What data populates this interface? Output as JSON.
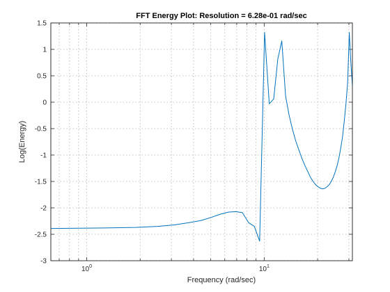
{
  "chart_data": {
    "type": "line",
    "title": "FFT Energy Plot: Resolution =   6.28e-01 rad/sec",
    "xlabel": "Frequency (rad/sec)",
    "ylabel": "Log(Energy)",
    "xscale": "log",
    "xlim": [
      0.628,
      31.4
    ],
    "ylim": [
      -3,
      1.5
    ],
    "x_ticks": [
      {
        "value": 1,
        "base": "10",
        "exp": "0"
      },
      {
        "value": 10,
        "base": "10",
        "exp": "1"
      }
    ],
    "y_ticks": [
      {
        "value": 1.5,
        "label": "1.5"
      },
      {
        "value": 1,
        "label": "1"
      },
      {
        "value": 0.5,
        "label": "0.5"
      },
      {
        "value": 0,
        "label": "0"
      },
      {
        "value": -0.5,
        "label": "-0.5"
      },
      {
        "value": -1,
        "label": "-1"
      },
      {
        "value": -1.5,
        "label": "-1.5"
      },
      {
        "value": -2,
        "label": "-2"
      },
      {
        "value": -2.5,
        "label": "-2.5"
      },
      {
        "value": -3,
        "label": "-3"
      }
    ],
    "grid": true,
    "series": [
      {
        "color": "#0072bd",
        "x": [
          0.628,
          1.257,
          1.885,
          2.513,
          3.142,
          3.77,
          4.398,
          5.027,
          5.655,
          6.283,
          6.912,
          7.54,
          8.168,
          8.796,
          9.425,
          10.053,
          10.681,
          11.31,
          11.938,
          12.566,
          13.195,
          13.823,
          14.451,
          15.08,
          15.708,
          16.336,
          16.965,
          17.593,
          18.221,
          18.85,
          19.478,
          20.106,
          20.735,
          21.363,
          21.991,
          22.619,
          23.248,
          23.876,
          24.504,
          25.133,
          25.761,
          26.389,
          27.018,
          27.646,
          28.274,
          28.903,
          29.531,
          30.159,
          30.788,
          31.416
        ],
        "values": [
          -2.39,
          -2.38,
          -2.37,
          -2.35,
          -2.32,
          -2.28,
          -2.24,
          -2.18,
          -2.12,
          -2.08,
          -2.07,
          -2.09,
          -2.28,
          -2.35,
          -2.63,
          1.32,
          -0.03,
          0.06,
          0.82,
          1.16,
          0.12,
          -0.25,
          -0.52,
          -0.74,
          -0.91,
          -1.07,
          -1.2,
          -1.31,
          -1.42,
          -1.5,
          -1.56,
          -1.6,
          -1.63,
          -1.64,
          -1.63,
          -1.6,
          -1.56,
          -1.5,
          -1.42,
          -1.32,
          -1.2,
          -1.05,
          -0.86,
          -0.65,
          -0.35,
          -0.02,
          0.38,
          1.32,
          0.74,
          0.3
        ]
      }
    ]
  }
}
